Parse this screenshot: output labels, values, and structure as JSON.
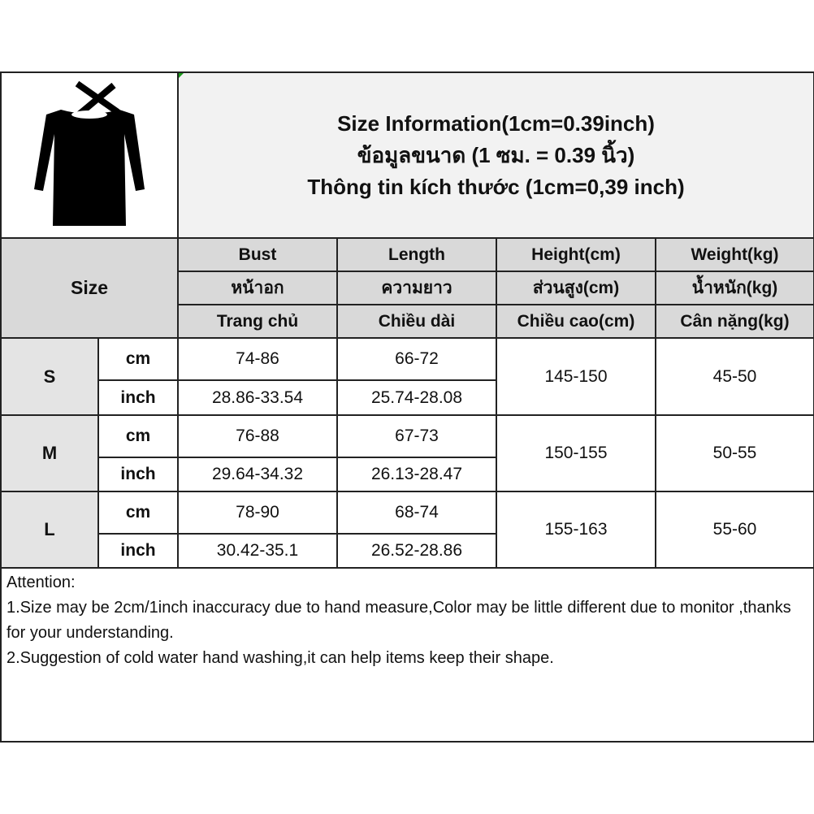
{
  "title_lines": [
    "Size Information(1cm=0.39inch)",
    "ข้อมูลขนาด (1 ซม. = 0.39 นิ้ว)",
    "Thông tin kích thước (1cm=0,39 inch)"
  ],
  "product_image": "black-off-shoulder-long-sleeve-dress",
  "size_label": "Size",
  "columns": [
    {
      "en": "Bust",
      "th": "หน้าอก",
      "vi": "Trang chủ"
    },
    {
      "en": "Length",
      "th": "ความยาว",
      "vi": "Chiều dài"
    },
    {
      "en": "Height(cm)",
      "th": "ส่วนสูง(cm)",
      "vi": "Chiều cao(cm)"
    },
    {
      "en": "Weight(kg)",
      "th": "น้ำหนัก(kg)",
      "vi": "Cân nặng(kg)"
    }
  ],
  "units": {
    "cm": "cm",
    "inch": "inch"
  },
  "rows": [
    {
      "size": "S",
      "bust_cm": "74-86",
      "length_cm": "66-72",
      "bust_inch": "28.86-33.54",
      "length_inch": "25.74-28.08",
      "height": "145-150",
      "weight": "45-50"
    },
    {
      "size": "M",
      "bust_cm": "76-88",
      "length_cm": "67-73",
      "bust_inch": "29.64-34.32",
      "length_inch": "26.13-28.47",
      "height": "150-155",
      "weight": "50-55"
    },
    {
      "size": "L",
      "bust_cm": "78-90",
      "length_cm": "68-74",
      "bust_inch": "30.42-35.1",
      "length_inch": "26.52-28.86",
      "height": "155-163",
      "weight": "55-60"
    }
  ],
  "attention": {
    "heading": "Attention:",
    "line1": "1.Size may be 2cm/1inch inaccuracy due to hand measure,Color may be little different due to monitor ,thanks for your understanding.",
    "line2": "2.Suggestion of cold water hand washing,it can help items keep their shape."
  }
}
